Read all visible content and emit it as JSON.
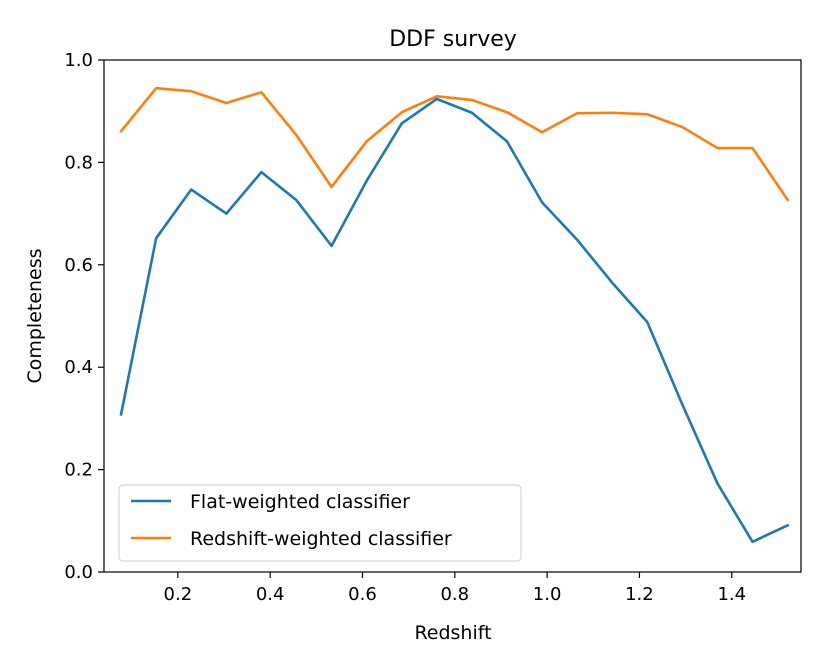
{
  "chart_data": {
    "type": "line",
    "title": "DDF survey",
    "xlabel": "Redshift",
    "ylabel": "Completeness",
    "xlim": [
      0.04,
      1.55
    ],
    "ylim": [
      0.0,
      1.0
    ],
    "xticks": [
      0.2,
      0.4,
      0.6,
      0.8,
      1.0,
      1.2,
      1.4
    ],
    "xtick_labels": [
      "0.2",
      "0.4",
      "0.6",
      "0.8",
      "1.0",
      "1.2",
      "1.4"
    ],
    "yticks": [
      0.0,
      0.2,
      0.4,
      0.6,
      0.8,
      1.0
    ],
    "ytick_labels": [
      "0.0",
      "0.2",
      "0.4",
      "0.6",
      "0.8",
      "1.0"
    ],
    "grid": false,
    "legend_position": "lower-left",
    "x": [
      0.077,
      0.153,
      0.229,
      0.305,
      0.381,
      0.457,
      0.533,
      0.609,
      0.685,
      0.761,
      0.837,
      0.913,
      0.989,
      1.065,
      1.141,
      1.217,
      1.293,
      1.369,
      1.445,
      1.521
    ],
    "series": [
      {
        "name": "Flat-weighted classifier",
        "color": "#1f77b4",
        "values": [
          0.308,
          0.652,
          0.747,
          0.7,
          0.781,
          0.726,
          0.637,
          0.764,
          0.876,
          0.924,
          0.897,
          0.841,
          0.722,
          0.649,
          0.565,
          0.488,
          0.327,
          0.173,
          0.059,
          0.091
        ]
      },
      {
        "name": "Redshift-weighted classifier",
        "color": "#ff7f0e",
        "values": [
          0.861,
          0.945,
          0.939,
          0.916,
          0.937,
          0.853,
          0.752,
          0.841,
          0.898,
          0.929,
          0.922,
          0.898,
          0.859,
          0.896,
          0.897,
          0.894,
          0.869,
          0.828,
          0.828,
          0.727
        ]
      }
    ]
  }
}
